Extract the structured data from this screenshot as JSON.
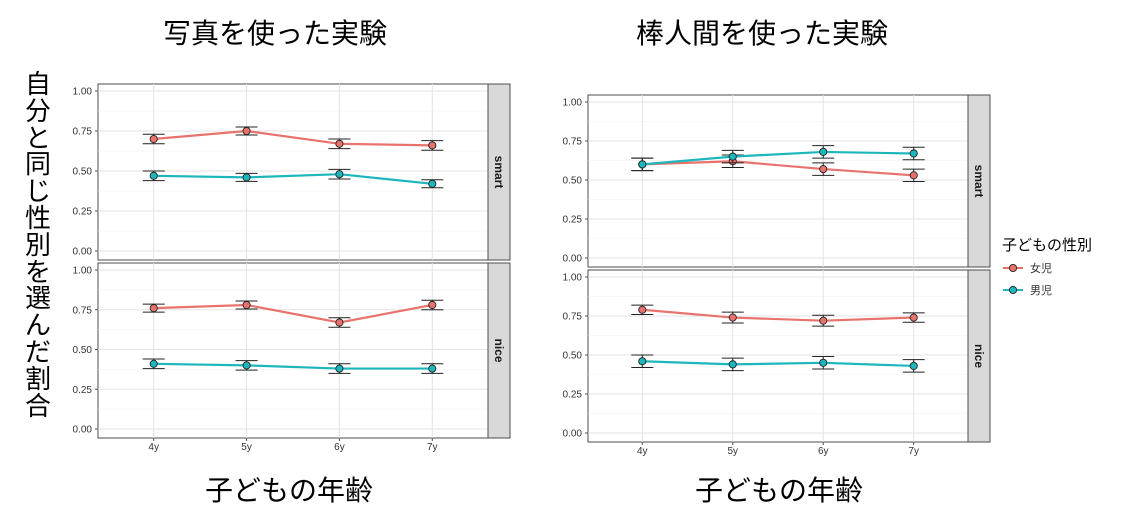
{
  "titles": {
    "left": "写真を使った実験",
    "right": "棒人間を使った実験"
  },
  "shared_ylabel": "自分と同じ性別を選んだ割合",
  "xlabels": {
    "left": "子どもの年齢",
    "right": "子どもの年齢"
  },
  "legend": {
    "title": "子どもの性別",
    "items": [
      {
        "label": "女児",
        "color": "#E8736C"
      },
      {
        "label": "男児",
        "color": "#1CB7BD"
      }
    ]
  },
  "chart_data": [
    {
      "type": "line",
      "title": "写真を使った実験",
      "xlabel": "子どもの年齢",
      "ylabel": "自分と同じ性別を選んだ割合",
      "categories": [
        "4y",
        "5y",
        "6y",
        "7y"
      ],
      "ylim": [
        0,
        1
      ],
      "yticks": [
        "0.00",
        "0.25",
        "0.50",
        "0.75",
        "1.00"
      ],
      "grid": true,
      "facets": [
        {
          "label": "smart",
          "series": [
            {
              "name": "女児",
              "values": [
                0.7,
                0.75,
                0.67,
                0.66
              ],
              "err": [
                0.03,
                0.025,
                0.03,
                0.03
              ]
            },
            {
              "name": "男児",
              "values": [
                0.47,
                0.46,
                0.48,
                0.42
              ],
              "err": [
                0.03,
                0.025,
                0.03,
                0.025
              ]
            }
          ]
        },
        {
          "label": "nice",
          "series": [
            {
              "name": "女児",
              "values": [
                0.76,
                0.78,
                0.67,
                0.78
              ],
              "err": [
                0.025,
                0.025,
                0.03,
                0.03
              ]
            },
            {
              "name": "男児",
              "values": [
                0.41,
                0.4,
                0.38,
                0.38
              ],
              "err": [
                0.03,
                0.03,
                0.03,
                0.03
              ]
            }
          ]
        }
      ]
    },
    {
      "type": "line",
      "title": "棒人間を使った実験",
      "xlabel": "子どもの年齢",
      "ylabel": "自分と同じ性別を選んだ割合",
      "categories": [
        "4y",
        "5y",
        "6y",
        "7y"
      ],
      "ylim": [
        0,
        1
      ],
      "yticks": [
        "0.00",
        "0.25",
        "0.50",
        "0.75",
        "1.00"
      ],
      "grid": true,
      "legend_position": "right",
      "facets": [
        {
          "label": "smart",
          "series": [
            {
              "name": "女児",
              "values": [
                0.6,
                0.62,
                0.57,
                0.53
              ],
              "err": [
                0.04,
                0.04,
                0.04,
                0.04
              ]
            },
            {
              "name": "男児",
              "values": [
                0.6,
                0.65,
                0.68,
                0.67
              ],
              "err": [
                0.04,
                0.04,
                0.04,
                0.04
              ]
            }
          ]
        },
        {
          "label": "nice",
          "series": [
            {
              "name": "女児",
              "values": [
                0.79,
                0.74,
                0.72,
                0.74
              ],
              "err": [
                0.03,
                0.035,
                0.035,
                0.03
              ]
            },
            {
              "name": "男児",
              "values": [
                0.46,
                0.44,
                0.45,
                0.43
              ],
              "err": [
                0.04,
                0.04,
                0.04,
                0.04
              ]
            }
          ]
        }
      ]
    }
  ]
}
